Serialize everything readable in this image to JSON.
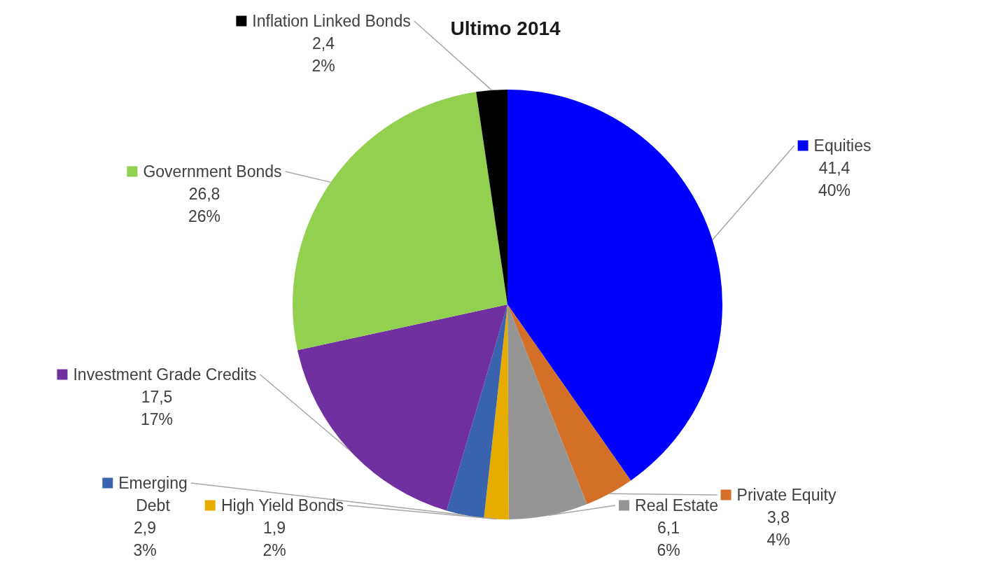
{
  "chart_data": {
    "type": "pie",
    "title": "Ultimo 2014",
    "categories": [
      "Equities",
      "Private Equity",
      "Real Estate",
      "High Yield Bonds",
      "Emerging Debt",
      "Investment Grade Credits",
      "Government Bonds",
      "Inflation Linked Bonds"
    ],
    "values": [
      41.4,
      3.8,
      6.1,
      1.9,
      2.9,
      17.5,
      26.8,
      2.4
    ],
    "colors": [
      "#0000ff",
      "#d46f28",
      "#959595",
      "#e6ac00",
      "#3a63ad",
      "#7030a0",
      "#92d050",
      "#000000"
    ],
    "value_labels": [
      "41,4\n40%",
      "3,8\n4%",
      "6,1\n6%",
      "1,9\n2%",
      "2,9\n3%",
      "17,5\n17%",
      "26,8\n26%",
      "2,4\n2%"
    ],
    "legend": "left"
  }
}
